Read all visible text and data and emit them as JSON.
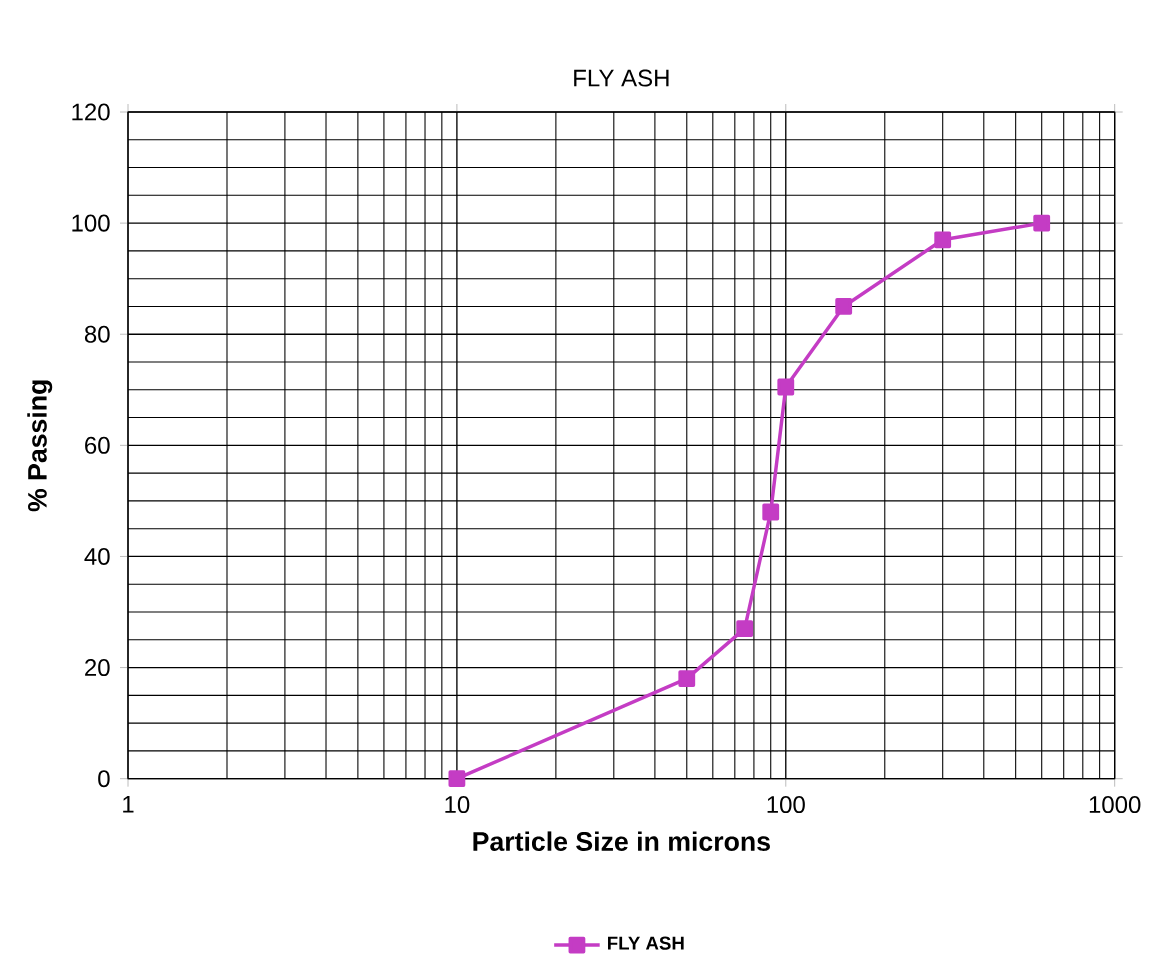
{
  "chart_data": {
    "type": "line",
    "title": "FLY ASH",
    "xlabel": "Particle Size in microns",
    "ylabel": "% Passing",
    "x": [
      10,
      50,
      75,
      90,
      100,
      150,
      300,
      600
    ],
    "series": [
      {
        "name": "FLY ASH",
        "color": "#c43cc4",
        "values": [
          0,
          18,
          27,
          48,
          70.5,
          85,
          97,
          100
        ]
      }
    ],
    "xlim": [
      1,
      1000
    ],
    "xticks": [
      1,
      10,
      100,
      1000
    ],
    "ylim": [
      0,
      120
    ],
    "yticks": [
      0,
      20,
      40,
      60,
      80,
      100,
      120
    ],
    "log": "x",
    "grid": true,
    "legend": "bottom",
    "marker": "square",
    "line_style": "solid"
  }
}
